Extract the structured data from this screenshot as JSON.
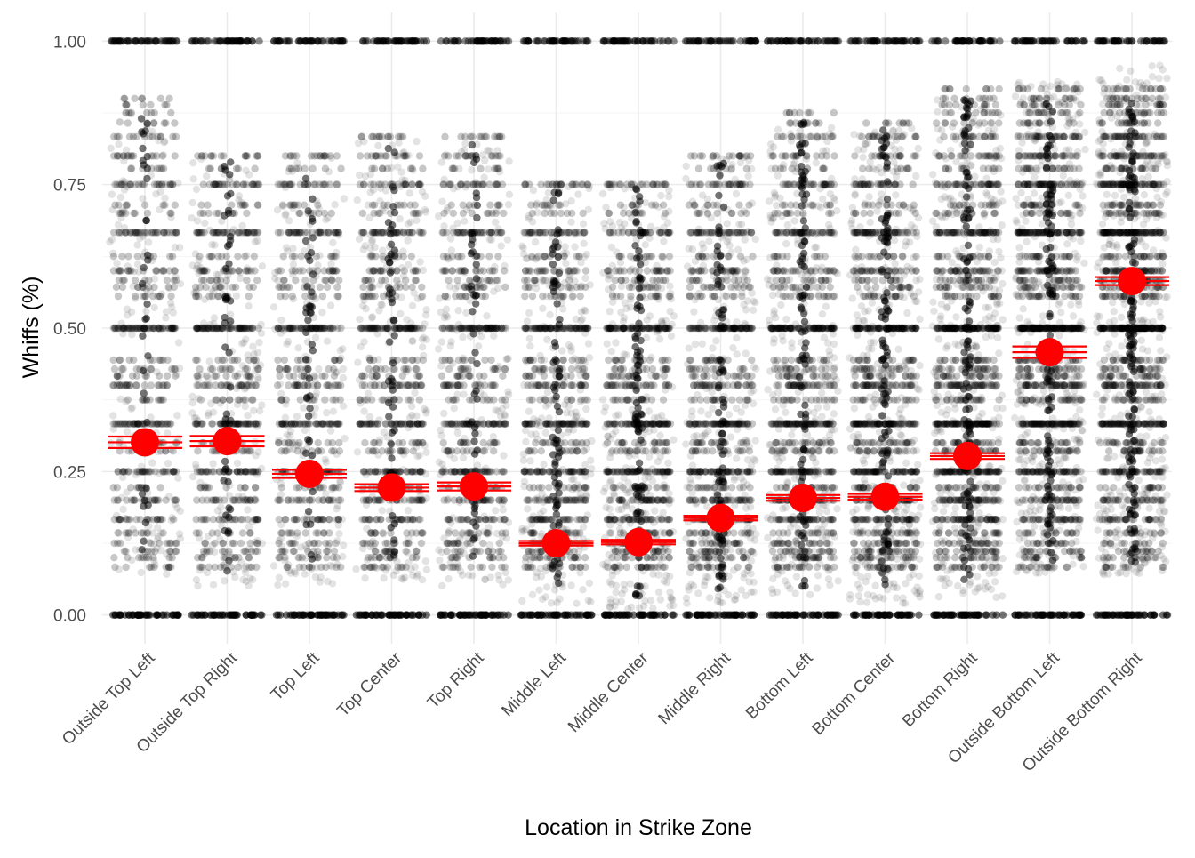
{
  "chart_data": {
    "type": "scatter",
    "title": "",
    "xlabel": "Location in Strike Zone",
    "ylabel": "Whiffs (%)",
    "ylim": [
      -0.05,
      1.05
    ],
    "grid": true,
    "legend": "none",
    "yticks": [
      {
        "value": 0.0,
        "label": "0.00"
      },
      {
        "value": 0.25,
        "label": "0.25"
      },
      {
        "value": 0.5,
        "label": "0.50"
      },
      {
        "value": 0.75,
        "label": "0.75"
      },
      {
        "value": 1.0,
        "label": "1.00"
      }
    ],
    "categories": [
      "Outside Top Left",
      "Outside Top Right",
      "Top Left",
      "Top Center",
      "Top Right",
      "Middle Left",
      "Middle Center",
      "Middle Right",
      "Bottom Left",
      "Bottom Center",
      "Bottom Right",
      "Outside Bottom Left",
      "Outside Bottom Right"
    ],
    "series": [
      {
        "kind": "mean",
        "values": [
          0.301,
          0.303,
          0.246,
          0.222,
          0.224,
          0.125,
          0.127,
          0.169,
          0.204,
          0.206,
          0.277,
          0.458,
          0.582
        ],
        "ci_low": [
          0.291,
          0.294,
          0.239,
          0.216,
          0.217,
          0.121,
          0.123,
          0.165,
          0.199,
          0.201,
          0.272,
          0.448,
          0.575
        ],
        "ci_high": [
          0.311,
          0.312,
          0.253,
          0.228,
          0.231,
          0.129,
          0.131,
          0.173,
          0.209,
          0.211,
          0.282,
          0.468,
          0.589
        ]
      },
      {
        "kind": "jittered-observations",
        "spread_low": [
          0.07,
          0.05,
          0.05,
          0.06,
          0.05,
          0.02,
          0.01,
          0.02,
          0.03,
          0.02,
          0.03,
          0.07,
          0.07
        ],
        "spread_high": [
          0.88,
          0.8,
          0.8,
          0.83,
          0.83,
          0.75,
          0.75,
          0.8,
          0.86,
          0.85,
          0.9,
          0.93,
          0.96
        ],
        "density": [
          0.22,
          0.28,
          0.26,
          0.34,
          0.3,
          0.46,
          0.55,
          0.52,
          0.56,
          0.66,
          0.72,
          0.72,
          0.8
        ]
      }
    ],
    "colors": {
      "points": "#000000",
      "mean": "#ff0000",
      "grid": "#ebebeb"
    }
  }
}
